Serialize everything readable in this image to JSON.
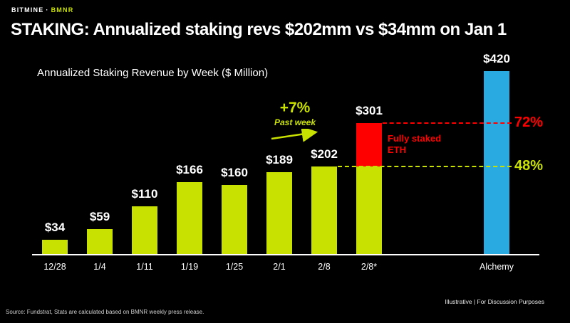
{
  "header": {
    "brand": "BITMINE",
    "separator": "·",
    "ticker": "BMNR",
    "title": "STAKING: Annualized staking revs $202mm vs $34mm on Jan 1"
  },
  "chart_data": {
    "type": "bar",
    "title": "Annualized Staking Revenue by Week ($ Million)",
    "categories": [
      "12/28",
      "1/4",
      "1/11",
      "1/19",
      "1/25",
      "2/1",
      "2/8",
      "2/8*",
      "Alchemy"
    ],
    "values": [
      34,
      59,
      110,
      166,
      160,
      189,
      202,
      301,
      420
    ],
    "bar_labels": [
      "$34",
      "$59",
      "$110",
      "$166",
      "$160",
      "$189",
      "$202",
      "$301",
      "$420"
    ],
    "ylim": [
      0,
      420
    ],
    "grid": false,
    "legend": "none",
    "colors": {
      "bar": "#c9e100",
      "highlight": "#ff0000",
      "alchemy": "#29abe2",
      "background": "#000000",
      "text": "#ffffff"
    },
    "stacked_bar": {
      "category": "2/8*",
      "base_value": 202,
      "top_value": 99,
      "label": "Fully staked ETH"
    },
    "alchemy_category": "Alchemy",
    "annotations": {
      "growth": {
        "text": "+7%",
        "subtext": "Past week"
      },
      "pct_72": {
        "label": "72%",
        "at_value": 301
      },
      "pct_48": {
        "label": "48%",
        "at_value": 202
      }
    }
  },
  "footer": {
    "source": "Source: Fundstrat, Stats are calculated based on BMNR weekly press release.",
    "right": "Illustrative  |  For Discussion Purposes"
  }
}
